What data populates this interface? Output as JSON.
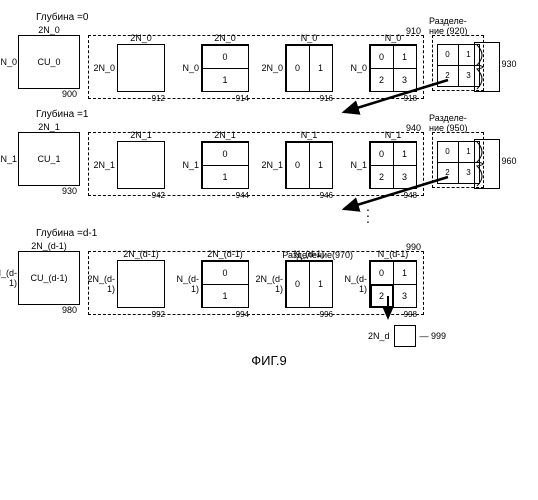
{
  "figure_label": "ФИГ.9",
  "rows": [
    {
      "depth_label": "Глубина =0",
      "cu": {
        "top": "2N_0",
        "left": "2N_0",
        "text": "CU_0",
        "ref": "900"
      },
      "group_ref": "910",
      "pus": [
        {
          "top": "2N_0",
          "left": "2N_0",
          "type": "full",
          "ref": "912"
        },
        {
          "top": "2N_0",
          "left": "N_0",
          "type": "h2",
          "cells": [
            "0",
            "1"
          ],
          "ref": "914"
        },
        {
          "top": "N_0",
          "left": "2N_0",
          "type": "v2",
          "cells": [
            "0",
            "1"
          ],
          "ref": "916"
        },
        {
          "top": "N_0",
          "left": "N_0",
          "type": "q4",
          "cells": [
            "0",
            "1",
            "2",
            "3"
          ],
          "ref": "918"
        }
      ],
      "split": {
        "label": "Разделе-\nние",
        "label_ref": "(920)",
        "cells": [
          "0",
          "1",
          "2",
          "3"
        ],
        "brace_ref": "930"
      }
    },
    {
      "depth_label": "Глубина =1",
      "cu": {
        "top": "2N_1",
        "left": "2N_1",
        "text": "CU_1",
        "ref": "930"
      },
      "group_ref": "940",
      "pus": [
        {
          "top": "2N_1",
          "left": "2N_1",
          "type": "full",
          "ref": "942"
        },
        {
          "top": "2N_1",
          "left": "N_1",
          "type": "h2",
          "cells": [
            "0",
            "1"
          ],
          "ref": "944"
        },
        {
          "top": "N_1",
          "left": "2N_1",
          "type": "v2",
          "cells": [
            "0",
            "1"
          ],
          "ref": "946"
        },
        {
          "top": "N_1",
          "left": "N_1",
          "type": "q4",
          "cells": [
            "0",
            "1",
            "2",
            "3"
          ],
          "ref": "948"
        }
      ],
      "split": {
        "label": "Разделе-\nние",
        "label_ref": "(950)",
        "cells": [
          "0",
          "1",
          "2",
          "3"
        ],
        "brace_ref": "960"
      }
    },
    {
      "depth_label": "Глубина =d-1",
      "cu": {
        "top": "2N_(d-1)",
        "left": "2N_(d-1)",
        "text": "CU_(d-1)",
        "ref": "980"
      },
      "group_ref": "990",
      "pus": [
        {
          "top": "2N_(d-1)",
          "left": "2N_(d-1)",
          "type": "full",
          "ref": "992"
        },
        {
          "top": "2N_(d-1)",
          "left": "N_(d-1)",
          "type": "h2",
          "cells": [
            "0",
            "1"
          ],
          "ref": "994"
        },
        {
          "top": "N_(d-1)",
          "left": "2N_(d-1)",
          "type": "v2",
          "cells": [
            "0",
            "1"
          ],
          "ref": "996"
        },
        {
          "top": "N_(d-1)",
          "left": "N_(d-1)",
          "type": "q4",
          "cells": [
            "0",
            "1",
            "2",
            "3"
          ],
          "ref": "998",
          "thick_cell": 2
        }
      ],
      "split": {
        "label": "Разделение",
        "label_ref": "(970)",
        "cells": null,
        "brace_ref": ""
      }
    }
  ],
  "final": {
    "label": "2N_d",
    "ref": "999"
  },
  "colors": {
    "line": "#000000",
    "bg": "#ffffff"
  }
}
